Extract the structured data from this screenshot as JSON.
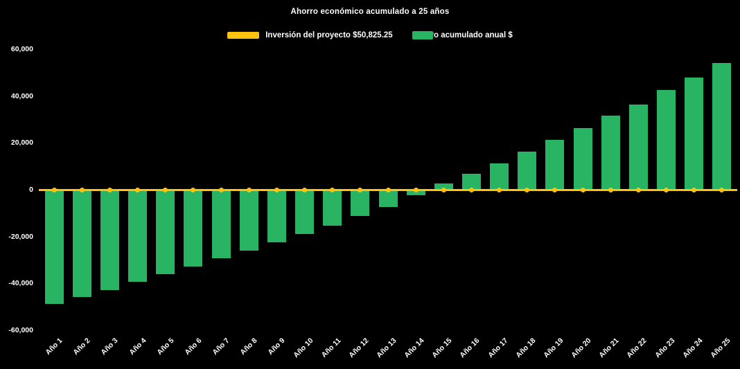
{
  "chart_data": {
    "type": "bar",
    "title": "Ahorro económico acumulado a 25 años",
    "background": "#000000",
    "text_color": "#ffffff",
    "grid": false,
    "legend_position": "top",
    "categories": [
      "Año 1",
      "Año 2",
      "Año 3",
      "Año 4",
      "Año 5",
      "Año 6",
      "Año 7",
      "Año 8",
      "Año 9",
      "Año 10",
      "Año 11",
      "Año 12",
      "Año 13",
      "Año 14",
      "Año 15",
      "Año 16",
      "Año 17",
      "Año 18",
      "Año 19",
      "Año 20",
      "Año 21",
      "Año 22",
      "Año 23",
      "Año 24",
      "Año 25"
    ],
    "series": [
      {
        "name": "Inversión del proyecto $50,825.25",
        "type": "line",
        "color": "#FFC20E",
        "marker": "circle",
        "values": [
          0,
          0,
          0,
          0,
          0,
          0,
          0,
          0,
          0,
          0,
          0,
          0,
          0,
          0,
          0,
          0,
          0,
          0,
          0,
          0,
          0,
          0,
          0,
          0,
          0
        ]
      },
      {
        "name": "Ahorro acumulado anual $",
        "type": "bar",
        "color": "#28B463",
        "values": [
          -48800,
          -45800,
          -42800,
          -39400,
          -36100,
          -32800,
          -29400,
          -26000,
          -22500,
          -18900,
          -15400,
          -11300,
          -7400,
          -2400,
          2700,
          6800,
          11200,
          16300,
          21300,
          26300,
          31600,
          36400,
          42600,
          47900,
          54100
        ]
      }
    ],
    "xlabel": "",
    "ylabel": "",
    "ylim": [
      -60000,
      60000
    ],
    "yticks": [
      60000,
      40000,
      20000,
      0,
      -20000,
      -40000,
      -60000
    ],
    "ytick_labels": [
      "60,000",
      "40,000",
      "20,000",
      "0",
      "-20,000",
      "-40,000",
      "-60,000"
    ]
  }
}
